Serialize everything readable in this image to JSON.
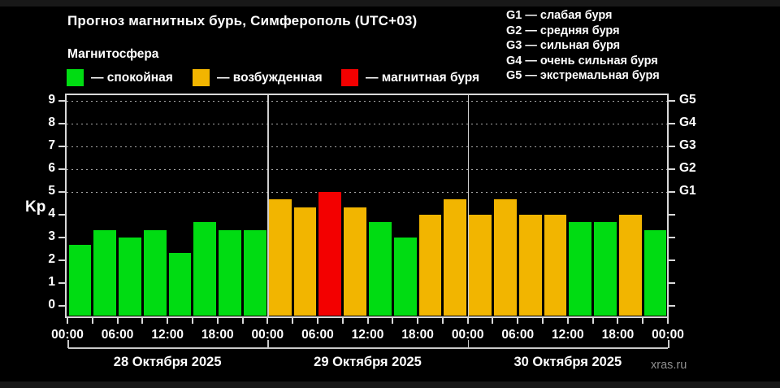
{
  "header": {
    "title": "Прогноз магнитных бурь, Симферополь (UTC+03)",
    "subtitle": "Магнитосфера"
  },
  "legend": {
    "items": [
      {
        "name": "quiet",
        "label": "— спокойная",
        "color": "#00DC12"
      },
      {
        "name": "excited",
        "label": "— возбужденная",
        "color": "#F2B500"
      },
      {
        "name": "storm",
        "label": "— магнитная буря",
        "color": "#F30000"
      }
    ]
  },
  "storm_scale": {
    "items": [
      "G1 — слабая буря",
      "G2 — средняя буря",
      "G3 — сильная буря",
      "G4 — очень сильная буря",
      "G5 — экстремальная буря"
    ]
  },
  "watermark": "xras.ru",
  "chart_data": {
    "type": "bar",
    "title": "Прогноз магнитных бурь, Симферополь (UTC+03)",
    "ylabel": "Kp",
    "ylim": [
      0,
      9
    ],
    "yticks": [
      0,
      1,
      2,
      3,
      4,
      5,
      6,
      7,
      8,
      9
    ],
    "grid_levels": [
      5,
      6,
      7,
      8,
      9
    ],
    "right_axis": [
      {
        "level": 5,
        "label": "G1"
      },
      {
        "level": 6,
        "label": "G2"
      },
      {
        "level": 7,
        "label": "G3"
      },
      {
        "level": 8,
        "label": "G4"
      },
      {
        "level": 9,
        "label": "G5"
      }
    ],
    "x_tick_labels": [
      "00:00",
      "06:00",
      "12:00",
      "18:00",
      "00:00",
      "06:00",
      "12:00",
      "18:00",
      "00:00",
      "06:00",
      "12:00",
      "18:00",
      "00:00"
    ],
    "bars_per_day": 8,
    "interval_hours": 3,
    "days": [
      {
        "date": "28 Октября 2025",
        "values": [
          2.67,
          3.33,
          3.0,
          3.33,
          2.33,
          3.67,
          3.33,
          3.33
        ]
      },
      {
        "date": "29 Октября 2025",
        "values": [
          4.67,
          4.33,
          5.0,
          4.33,
          3.67,
          3.0,
          4.0,
          4.67
        ]
      },
      {
        "date": "30 Октября 2025",
        "values": [
          4.0,
          4.67,
          4.0,
          4.0,
          3.67,
          3.67,
          4.0,
          3.33
        ]
      }
    ],
    "thresholds": {
      "excited_from": 4,
      "storm_from": 5
    },
    "colors": {
      "quiet": "#00DC12",
      "excited": "#F2B500",
      "storm": "#F30000"
    },
    "legend_position": "top-left",
    "grid": "dotted horizontal lines at G-storm levels only"
  }
}
